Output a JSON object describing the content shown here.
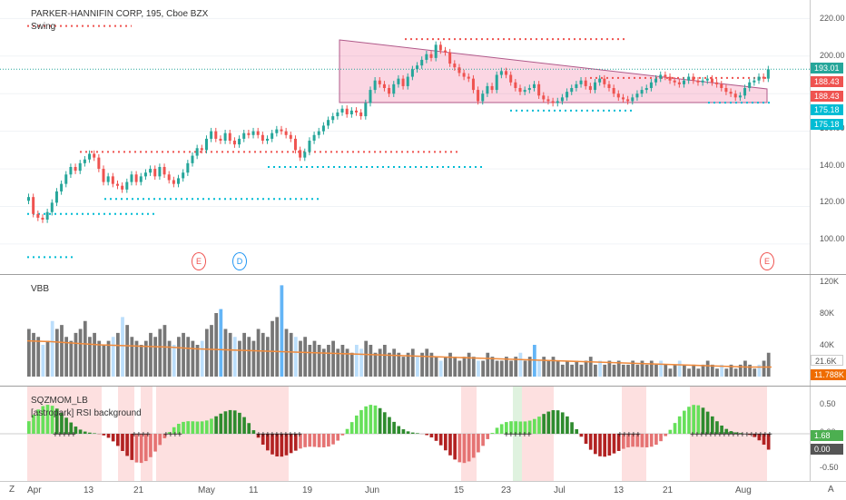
{
  "chart_data": [
    {
      "type": "candlestick",
      "title": "PARKER-HANNIFIN CORP, 195, Cboe BZX",
      "indicator": "Swing",
      "ylim": [
        85,
        225
      ],
      "yticks": [
        "220.00",
        "200.00",
        "180.00",
        "160.00",
        "140.00",
        "120.00",
        "100.00"
      ],
      "last_price": "193.01",
      "price_tags": [
        {
          "label": "193.01",
          "color": "#26a69a"
        },
        {
          "label": "188.43",
          "color": "#ef5350"
        },
        {
          "label": "188.43",
          "color": "#ef5350"
        },
        {
          "label": "175.18",
          "color": "#00bcd4"
        },
        {
          "label": "175.18",
          "color": "#00bcd4"
        }
      ],
      "closes": [
        125,
        116,
        114,
        113,
        117,
        122,
        128,
        132,
        137,
        141,
        139,
        143,
        145,
        148,
        146,
        140,
        133,
        136,
        132,
        131,
        129,
        133,
        137,
        133,
        136,
        138,
        140,
        136,
        141,
        137,
        134,
        132,
        135,
        138,
        143,
        147,
        151,
        150,
        156,
        160,
        156,
        155,
        159,
        155,
        153,
        156,
        159,
        158,
        160,
        158,
        155,
        156,
        159,
        161,
        160,
        158,
        156,
        150,
        146,
        149,
        155,
        158,
        160,
        163,
        166,
        168,
        170,
        172,
        169,
        171,
        170,
        168,
        175,
        182,
        187,
        185,
        183,
        180,
        185,
        188,
        184,
        189,
        193,
        195,
        198,
        201,
        199,
        206,
        203,
        202,
        196,
        194,
        191,
        189,
        188,
        182,
        176,
        180,
        184,
        182,
        190,
        192,
        190,
        186,
        183,
        181,
        182,
        183,
        185,
        179,
        177,
        176,
        175,
        176,
        178,
        181,
        183,
        185,
        187,
        184,
        182,
        186,
        188,
        185,
        183,
        180,
        178,
        177,
        176,
        178,
        180,
        182,
        183,
        186,
        188,
        190,
        189,
        187,
        186,
        185,
        187,
        189,
        187,
        186,
        187,
        188,
        186,
        185,
        183,
        181,
        180,
        178,
        179,
        183,
        186,
        187,
        189,
        188,
        193
      ],
      "series_levels": [
        {
          "name": "Swing high",
          "values": [
            216,
            209,
            188,
            175,
            149
          ]
        },
        {
          "name": "Swing low",
          "values": [
            115,
            124,
            140,
            175,
            116,
            93
          ]
        }
      ],
      "events": [
        "E",
        "D",
        "E"
      ]
    },
    {
      "type": "bar",
      "title": "VBB",
      "ylim": [
        0,
        120000
      ],
      "yticks": [
        "120K",
        "80K",
        "40K"
      ],
      "tags": [
        {
          "label": "21.6K",
          "color": "#ffffff",
          "text": "#555555"
        },
        {
          "label": "11.788K",
          "color": "#ef6c00",
          "text": "#ffffff"
        }
      ],
      "values": [
        60,
        55,
        50,
        40,
        45,
        70,
        60,
        65,
        50,
        45,
        55,
        60,
        70,
        50,
        55,
        45,
        40,
        45,
        50,
        55,
        75,
        65,
        50,
        45,
        40,
        45,
        55,
        50,
        60,
        65,
        45,
        40,
        50,
        55,
        50,
        45,
        40,
        45,
        60,
        65,
        80,
        85,
        60,
        55,
        50,
        45,
        55,
        50,
        45,
        60,
        55,
        50,
        70,
        75,
        115,
        60,
        55,
        50,
        45,
        50,
        40,
        45,
        40,
        35,
        40,
        45,
        35,
        40,
        35,
        30,
        40,
        35,
        45,
        40,
        30,
        35,
        40,
        30,
        35,
        30,
        25,
        30,
        35,
        25,
        30,
        35,
        30,
        25,
        20,
        25,
        30,
        25,
        20,
        25,
        30,
        25,
        20,
        20,
        30,
        25,
        20,
        20,
        25,
        20,
        25,
        30,
        20,
        25,
        40,
        20,
        25,
        20,
        25,
        20,
        15,
        20,
        15,
        20,
        15,
        20,
        25,
        15,
        20,
        15,
        20,
        15,
        20,
        15,
        15,
        20,
        15,
        20,
        15,
        20,
        15,
        20,
        15,
        10,
        15,
        20,
        15,
        10,
        15,
        10,
        15,
        20,
        15,
        10,
        15,
        10,
        15,
        10,
        15,
        20,
        15,
        10,
        15,
        20,
        30
      ],
      "ma": [
        45,
        44,
        42,
        40,
        39,
        38,
        37,
        35,
        34,
        33,
        32,
        31,
        30,
        29,
        28,
        27,
        26,
        25,
        24,
        23,
        22,
        21,
        20,
        19,
        18,
        17,
        16,
        15,
        14,
        13,
        12,
        12
      ]
    },
    {
      "type": "bar",
      "title": "SQZMOM_LB",
      "subtitle": "[astropark] RSI background",
      "ylim": [
        -0.6,
        0.6
      ],
      "yticks": [
        "0.50",
        "0.00",
        "-0.50"
      ],
      "tags": [
        {
          "label": "1.68",
          "color": "#4caf50"
        },
        {
          "label": "0.00",
          "color": "#555555"
        }
      ]
    }
  ],
  "xaxis": {
    "labels": [
      "Apr",
      "13",
      "21",
      "May",
      "11",
      "19",
      "Jun",
      "15",
      "23",
      "Jul",
      "13",
      "21",
      "Aug"
    ]
  },
  "corner_left": "Z",
  "corner_right": "A"
}
